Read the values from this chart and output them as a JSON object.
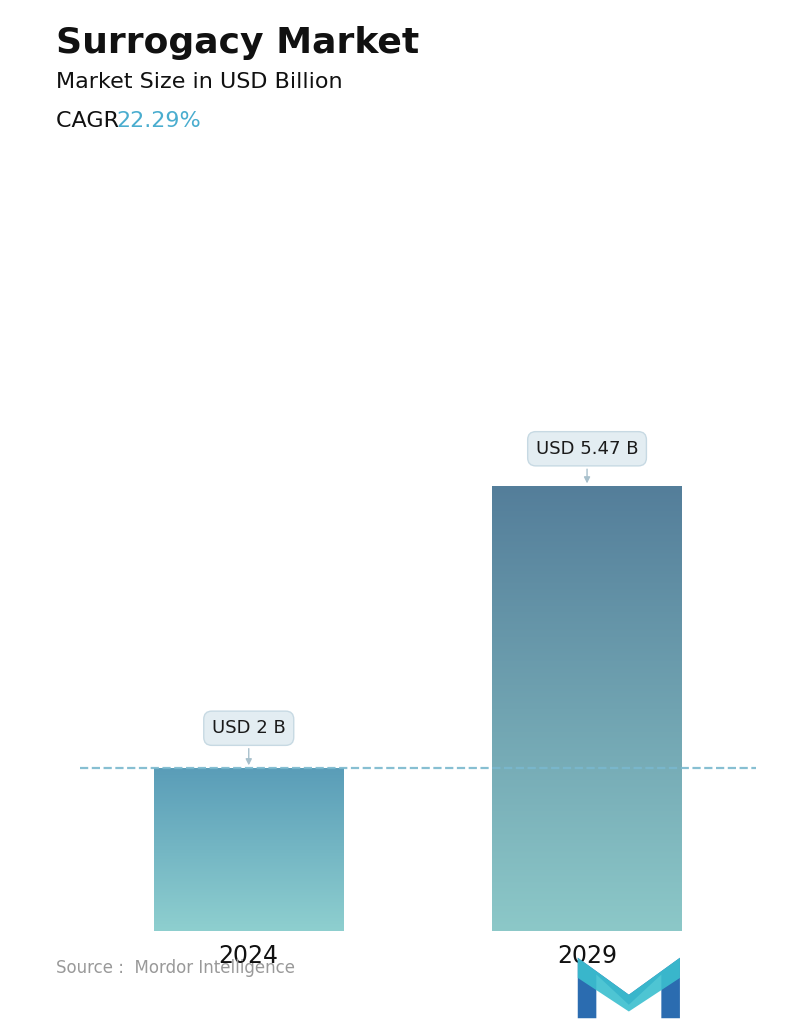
{
  "title": "Surrogacy Market",
  "subtitle": "Market Size in USD Billion",
  "cagr_label": "CAGR ",
  "cagr_value": "22.29%",
  "cagr_color": "#4AADCF",
  "categories": [
    "2024",
    "2029"
  ],
  "values": [
    2.0,
    5.47
  ],
  "bar_labels": [
    "USD 2 B",
    "USD 5.47 B"
  ],
  "bar_top_colors": [
    "#5A9DB8",
    "#547E9A"
  ],
  "bar_bottom_colors": [
    "#8ECFCF",
    "#8CC8C8"
  ],
  "dashed_line_y": 2.0,
  "dashed_line_color": "#7AB8CE",
  "ylim": [
    0,
    7.0
  ],
  "source_text": "Source :  Mordor Intelligence",
  "bg_color": "#FFFFFF",
  "title_fontsize": 26,
  "subtitle_fontsize": 16,
  "cagr_fontsize": 16,
  "bar_label_fontsize": 13,
  "xlabel_fontsize": 17,
  "source_fontsize": 12,
  "callout_facecolor": "#E2EDF2",
  "callout_edgecolor": "#C5D8E2",
  "callout_arrow_color": "#A8C0CC"
}
